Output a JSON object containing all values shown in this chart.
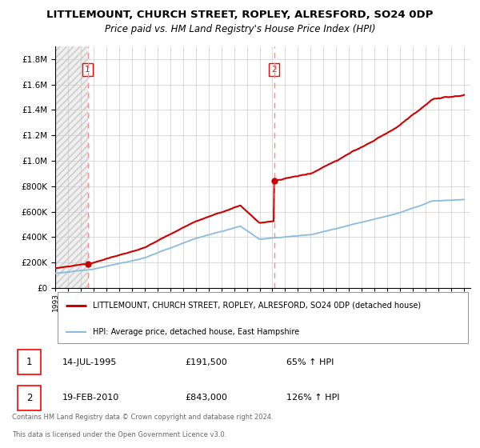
{
  "title": "LITTLEMOUNT, CHURCH STREET, ROPLEY, ALRESFORD, SO24 0DP",
  "subtitle": "Price paid vs. HM Land Registry's House Price Index (HPI)",
  "legend_property": "LITTLEMOUNT, CHURCH STREET, ROPLEY, ALRESFORD, SO24 0DP (detached house)",
  "legend_hpi": "HPI: Average price, detached house, East Hampshire",
  "transactions": [
    {
      "num": "1",
      "date": "14-JUL-1995",
      "price": "£191,500",
      "hpi": "65% ↑ HPI"
    },
    {
      "num": "2",
      "date": "19-FEB-2010",
      "price": "£843,000",
      "hpi": "126% ↑ HPI"
    }
  ],
  "footnote1": "Contains HM Land Registry data © Crown copyright and database right 2024.",
  "footnote2": "This data is licensed under the Open Government Licence v3.0.",
  "t1_year": 1995.54,
  "t2_year": 2010.13,
  "t1_price": 191500,
  "t2_price": 843000,
  "property_color": "#cc0000",
  "hpi_color": "#88bbdd",
  "dashed_color": "#ff8888",
  "ylim_max": 1900000,
  "xmin": 1993,
  "xmax": 2025.5,
  "yticks": [
    0,
    200000,
    400000,
    600000,
    800000,
    1000000,
    1200000,
    1400000,
    1600000,
    1800000
  ]
}
